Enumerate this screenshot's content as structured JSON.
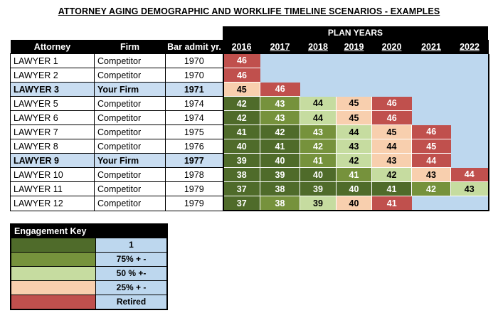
{
  "title": "ATTORNEY AGING DEMOGRAPHIC AND WORKLIFE TIMELINE SCENARIOS - EXAMPLES",
  "plan_years_label": "PLAN YEARS",
  "headers": {
    "attorney": "Attorney",
    "firm": "Firm",
    "bar_admit": "Bar admit yr."
  },
  "years": [
    "2016",
    "2017",
    "2018",
    "2019",
    "2020",
    "2021",
    "2022"
  ],
  "colors": {
    "level_1": "#4f6b2a",
    "level_75": "#76923c",
    "level_50": "#c6dca0",
    "level_25": "#f8cfae",
    "retired": "#c0504d",
    "blank": "#bdd7ee",
    "own_firm": "#c9ddf1"
  },
  "rows": [
    {
      "name": "LAWYER 1",
      "firm": "Competitor",
      "admit": "1970",
      "own": false,
      "cells": [
        {
          "v": "46",
          "lvl": "lr"
        }
      ]
    },
    {
      "name": "LAWYER 2",
      "firm": "Competitor",
      "admit": "1970",
      "own": false,
      "cells": [
        {
          "v": "46",
          "lvl": "lr"
        }
      ]
    },
    {
      "name": "LAWYER 3",
      "firm": "Your Firm",
      "admit": "1971",
      "own": true,
      "cells": [
        {
          "v": "45",
          "lvl": "l25"
        },
        {
          "v": "46",
          "lvl": "lr"
        }
      ]
    },
    {
      "name": "LAWYER 5",
      "firm": "Competitor",
      "admit": "1974",
      "own": false,
      "cells": [
        {
          "v": "42",
          "lvl": "l1"
        },
        {
          "v": "43",
          "lvl": "l75"
        },
        {
          "v": "44",
          "lvl": "l50"
        },
        {
          "v": "45",
          "lvl": "l25"
        },
        {
          "v": "46",
          "lvl": "lr"
        }
      ]
    },
    {
      "name": "LAWYER 6",
      "firm": "Competitor",
      "admit": "1974",
      "own": false,
      "cells": [
        {
          "v": "42",
          "lvl": "l1"
        },
        {
          "v": "43",
          "lvl": "l75"
        },
        {
          "v": "44",
          "lvl": "l50"
        },
        {
          "v": "45",
          "lvl": "l25"
        },
        {
          "v": "46",
          "lvl": "lr"
        }
      ]
    },
    {
      "name": "LAWYER 7",
      "firm": "Competitor",
      "admit": "1975",
      "own": false,
      "cells": [
        {
          "v": "41",
          "lvl": "l1"
        },
        {
          "v": "42",
          "lvl": "l1"
        },
        {
          "v": "43",
          "lvl": "l75"
        },
        {
          "v": "44",
          "lvl": "l50"
        },
        {
          "v": "45",
          "lvl": "l25"
        },
        {
          "v": "46",
          "lvl": "lr"
        }
      ]
    },
    {
      "name": "LAWYER 8",
      "firm": "Competitor",
      "admit": "1976",
      "own": false,
      "cells": [
        {
          "v": "40",
          "lvl": "l1"
        },
        {
          "v": "41",
          "lvl": "l1"
        },
        {
          "v": "42",
          "lvl": "l75"
        },
        {
          "v": "43",
          "lvl": "l50"
        },
        {
          "v": "44",
          "lvl": "l25"
        },
        {
          "v": "45",
          "lvl": "lr"
        }
      ]
    },
    {
      "name": "LAWYER 9",
      "firm": "Your Firm",
      "admit": "1977",
      "own": true,
      "cells": [
        {
          "v": "39",
          "lvl": "l1"
        },
        {
          "v": "40",
          "lvl": "l1"
        },
        {
          "v": "41",
          "lvl": "l75"
        },
        {
          "v": "42",
          "lvl": "l50"
        },
        {
          "v": "43",
          "lvl": "l25"
        },
        {
          "v": "44",
          "lvl": "lr"
        }
      ]
    },
    {
      "name": "LAWYER 10",
      "firm": "Competitor",
      "admit": "1978",
      "own": false,
      "cells": [
        {
          "v": "38",
          "lvl": "l1"
        },
        {
          "v": "39",
          "lvl": "l1"
        },
        {
          "v": "40",
          "lvl": "l1"
        },
        {
          "v": "41",
          "lvl": "l75"
        },
        {
          "v": "42",
          "lvl": "l50"
        },
        {
          "v": "43",
          "lvl": "l25"
        },
        {
          "v": "44",
          "lvl": "lr"
        }
      ]
    },
    {
      "name": "LAWYER 11",
      "firm": "Competitor",
      "admit": "1979",
      "own": false,
      "cells": [
        {
          "v": "37",
          "lvl": "l1"
        },
        {
          "v": "38",
          "lvl": "l1"
        },
        {
          "v": "39",
          "lvl": "l1"
        },
        {
          "v": "40",
          "lvl": "l1"
        },
        {
          "v": "41",
          "lvl": "l1"
        },
        {
          "v": "42",
          "lvl": "l75"
        },
        {
          "v": "43",
          "lvl": "l50"
        }
      ]
    },
    {
      "name": "LAWYER 12",
      "firm": "Competitor",
      "admit": "1979",
      "own": false,
      "cells": [
        {
          "v": "37",
          "lvl": "l1"
        },
        {
          "v": "38",
          "lvl": "l75"
        },
        {
          "v": "39",
          "lvl": "l50"
        },
        {
          "v": "40",
          "lvl": "l25"
        },
        {
          "v": "41",
          "lvl": "lr"
        }
      ]
    }
  ],
  "key": {
    "title": "Engagement Key",
    "items": [
      {
        "label": "1",
        "lvl": "l1"
      },
      {
        "label": "75% + -",
        "lvl": "l75"
      },
      {
        "label": "50 % +-",
        "lvl": "l50"
      },
      {
        "label": "25% + -",
        "lvl": "l25"
      },
      {
        "label": "Retired",
        "lvl": "lr"
      }
    ]
  }
}
